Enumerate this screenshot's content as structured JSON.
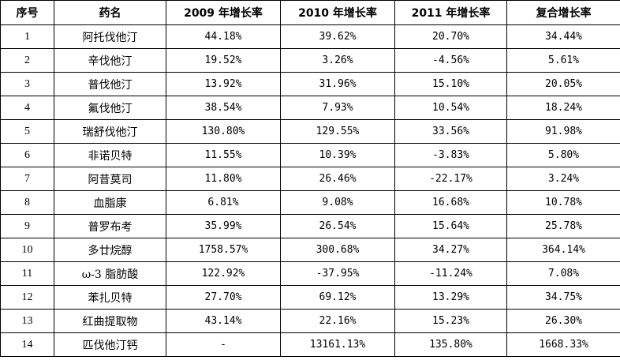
{
  "headers": [
    "序号",
    "药名",
    "2009 年增长率",
    "2010 年增长率",
    "2011 年增长率",
    "复合增长率"
  ],
  "rows": [
    {
      "no": "1",
      "name": "阿托伐他汀",
      "y2009": "44.18%",
      "y2010": "39.62%",
      "y2011": "20.70%",
      "cagr": "34.44%"
    },
    {
      "no": "2",
      "name": "辛伐他汀",
      "y2009": "19.52%",
      "y2010": "3.26%",
      "y2011": "-4.56%",
      "cagr": "5.61%"
    },
    {
      "no": "3",
      "name": "普伐他汀",
      "y2009": "13.92%",
      "y2010": "31.96%",
      "y2011": "15.10%",
      "cagr": "20.05%"
    },
    {
      "no": "4",
      "name": "氟伐他汀",
      "y2009": "38.54%",
      "y2010": "7.93%",
      "y2011": "10.54%",
      "cagr": "18.24%"
    },
    {
      "no": "5",
      "name": "瑞舒伐他汀",
      "y2009": "130.80%",
      "y2010": "129.55%",
      "y2011": "33.56%",
      "cagr": "91.98%"
    },
    {
      "no": "6",
      "name": "非诺贝特",
      "y2009": "11.55%",
      "y2010": "10.39%",
      "y2011": "-3.83%",
      "cagr": "5.80%"
    },
    {
      "no": "7",
      "name": "阿昔莫司",
      "y2009": "11.80%",
      "y2010": "26.46%",
      "y2011": "-22.17%",
      "cagr": "3.24%"
    },
    {
      "no": "8",
      "name": "血脂康",
      "y2009": "6.81%",
      "y2010": "9.08%",
      "y2011": "16.68%",
      "cagr": "10.78%"
    },
    {
      "no": "9",
      "name": "普罗布考",
      "y2009": "35.99%",
      "y2010": "26.54%",
      "y2011": "15.64%",
      "cagr": "25.78%"
    },
    {
      "no": "10",
      "name": "多廿烷醇",
      "y2009": "1758.57%",
      "y2010": "300.68%",
      "y2011": "34.27%",
      "cagr": "364.14%"
    },
    {
      "no": "11",
      "name": "ω-3 脂肪酸",
      "y2009": "122.92%",
      "y2010": "-37.95%",
      "y2011": "-11.24%",
      "cagr": "7.08%"
    },
    {
      "no": "12",
      "name": "苯扎贝特",
      "y2009": "27.70%",
      "y2010": "69.12%",
      "y2011": "13.29%",
      "cagr": "34.75%"
    },
    {
      "no": "13",
      "name": "红曲提取物",
      "y2009": "43.14%",
      "y2010": "22.16%",
      "y2011": "15.23%",
      "cagr": "26.30%"
    },
    {
      "no": "14",
      "name": "匹伐他汀钙",
      "y2009": "-",
      "y2010": "13161.13%",
      "y2011": "135.80%",
      "cagr": "1668.33%"
    }
  ]
}
